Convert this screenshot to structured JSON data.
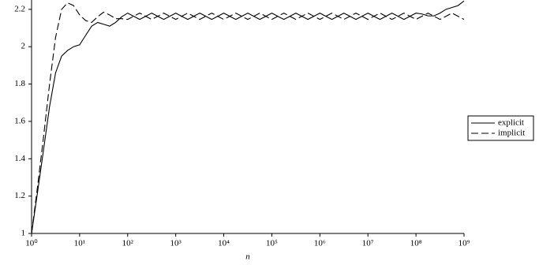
{
  "chart_data": {
    "type": "line",
    "xlabel": "n",
    "xlog": true,
    "legend": "right",
    "xlim": [
      1,
      1000000000.0
    ],
    "ylim": [
      1,
      2.25
    ],
    "xticks": [
      {
        "value": 1,
        "label": "10⁰"
      },
      {
        "value": 10,
        "label": "10¹"
      },
      {
        "value": 100,
        "label": "10²"
      },
      {
        "value": 1000,
        "label": "10³"
      },
      {
        "value": 10000,
        "label": "10⁴"
      },
      {
        "value": 100000,
        "label": "10⁵"
      },
      {
        "value": 1000000,
        "label": "10⁶"
      },
      {
        "value": 10000000,
        "label": "10⁷"
      },
      {
        "value": 100000000,
        "label": "10⁸"
      },
      {
        "value": 1000000000,
        "label": "10⁹"
      }
    ],
    "yticks": [
      1,
      1.2,
      1.4,
      1.6,
      1.8,
      2,
      2.2
    ],
    "x": [
      1,
      1.33,
      1.78,
      2.37,
      3.16,
      4.22,
      5.62,
      7.5,
      10.0,
      13.3,
      17.8,
      23.7,
      31.6,
      42.2,
      56.2,
      75.0,
      100.0,
      133.0,
      178.0,
      237.0,
      316.0,
      422.0,
      562.0,
      750.0,
      1000.0,
      1330.0,
      1780.0,
      2370.0,
      3160.0,
      4220.0,
      5620.0,
      7500.0,
      10000.0,
      13300.0,
      17800.0,
      23700.0,
      31600.0,
      42200.0,
      56200.0,
      75000.0,
      100000.0,
      133000.0,
      178000.0,
      237000.0,
      316000.0,
      422000.0,
      562000.0,
      750000.0,
      1000000.0,
      1330000.0,
      1780000.0,
      2370000.0,
      3160000.0,
      4220000.0,
      5620000.0,
      7500000.0,
      10000000.0,
      13300000.0,
      17800000.0,
      23700000.0,
      31600000.0,
      42200000.0,
      56200000.0,
      75000000.0,
      100000000.0,
      133000000.0,
      178000000.0,
      237000000.0,
      316000000.0,
      422000000.0,
      562000000.0,
      750000000.0,
      1000000000.0
    ],
    "series": [
      {
        "name": "explicit",
        "color": "#000000",
        "dash": "solid",
        "values": [
          1,
          1.22,
          1.45,
          1.68,
          1.86,
          1.95,
          1.98,
          2,
          2.01,
          2.06,
          2.11,
          2.13,
          2.12,
          2.11,
          2.13,
          2.16,
          2.18,
          2.163,
          2.146,
          2.163,
          2.18,
          2.163,
          2.146,
          2.163,
          2.18,
          2.163,
          2.146,
          2.163,
          2.18,
          2.163,
          2.146,
          2.163,
          2.18,
          2.163,
          2.146,
          2.163,
          2.18,
          2.163,
          2.146,
          2.163,
          2.18,
          2.163,
          2.146,
          2.163,
          2.18,
          2.163,
          2.146,
          2.163,
          2.18,
          2.163,
          2.146,
          2.163,
          2.18,
          2.163,
          2.146,
          2.163,
          2.18,
          2.163,
          2.146,
          2.163,
          2.18,
          2.163,
          2.146,
          2.163,
          2.18,
          2.175,
          2.165,
          2.165,
          2.18,
          2.2,
          2.21,
          2.22,
          2.245
        ]
      },
      {
        "name": "implicit",
        "color": "#000000",
        "dash": "dashed",
        "values": [
          1,
          1.25,
          1.52,
          1.8,
          2.05,
          2.2,
          2.235,
          2.22,
          2.17,
          2.14,
          2.13,
          2.16,
          2.185,
          2.17,
          2.15,
          2.15,
          2.146,
          2.163,
          2.18,
          2.163,
          2.146,
          2.163,
          2.18,
          2.163,
          2.146,
          2.163,
          2.18,
          2.163,
          2.146,
          2.163,
          2.18,
          2.163,
          2.146,
          2.163,
          2.18,
          2.163,
          2.146,
          2.163,
          2.18,
          2.163,
          2.146,
          2.163,
          2.18,
          2.163,
          2.146,
          2.163,
          2.18,
          2.163,
          2.146,
          2.163,
          2.18,
          2.163,
          2.146,
          2.163,
          2.18,
          2.163,
          2.146,
          2.163,
          2.18,
          2.163,
          2.146,
          2.163,
          2.18,
          2.163,
          2.146,
          2.163,
          2.18,
          2.163,
          2.146,
          2.163,
          2.18,
          2.163,
          2.146
        ]
      }
    ]
  }
}
